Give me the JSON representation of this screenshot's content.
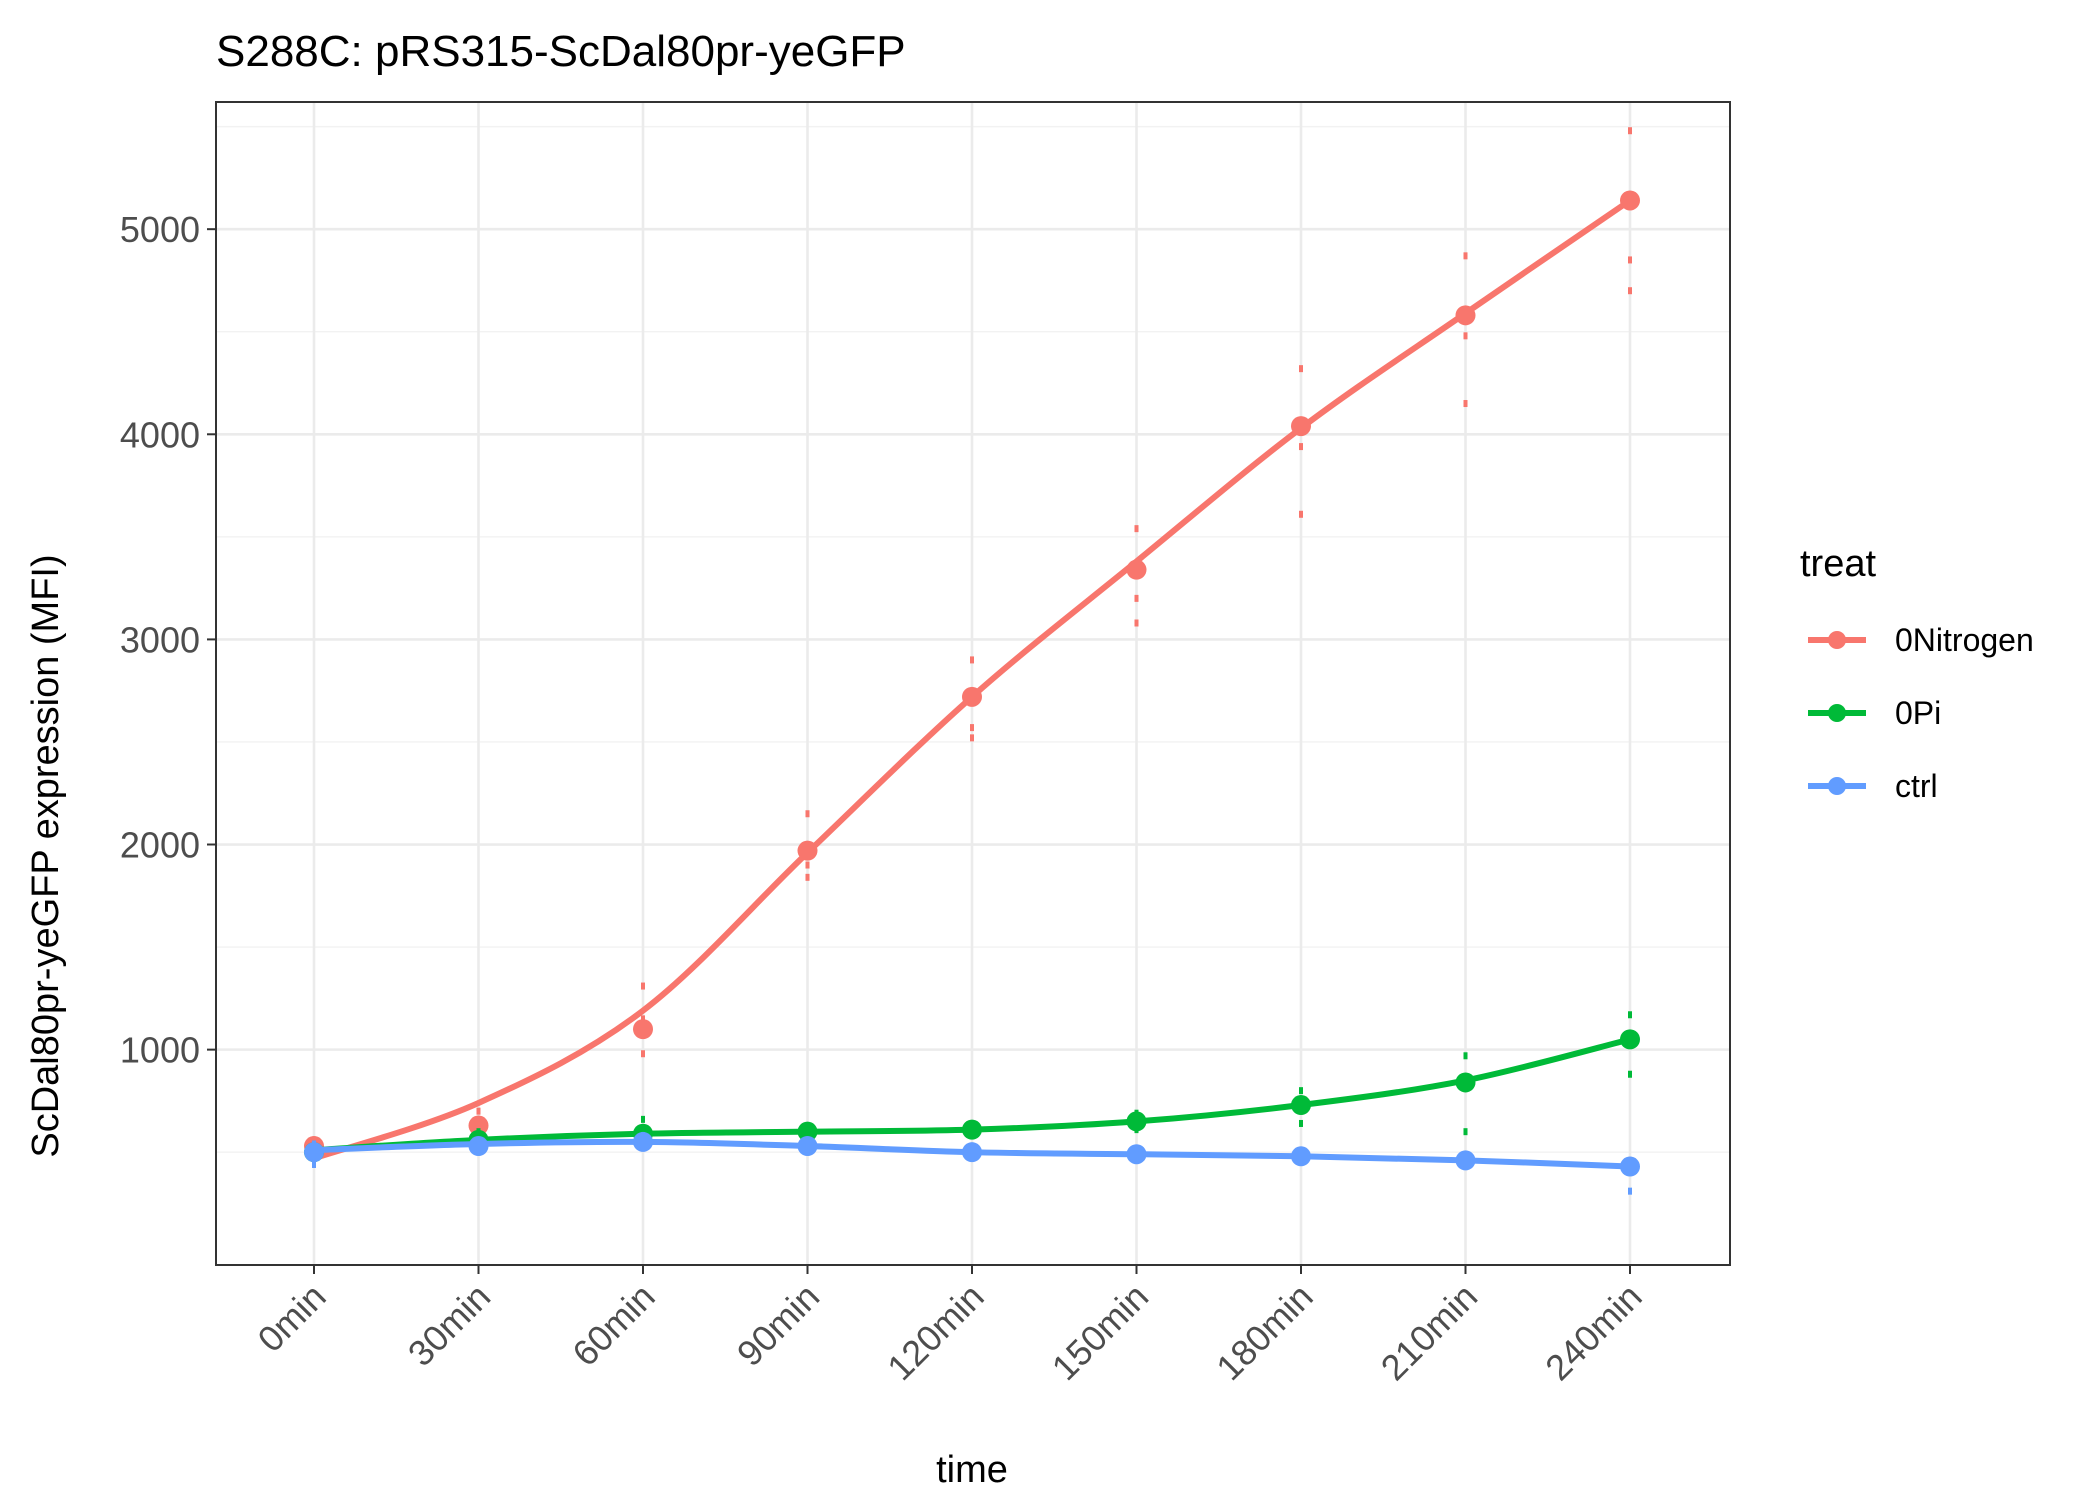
{
  "chart_data": {
    "type": "line",
    "title": "S288C: pRS315-ScDal80pr-yeGFP",
    "xlabel": "time",
    "ylabel": "ScDal80pr-yeGFP expression (MFI)",
    "categories": [
      "0min",
      "30min",
      "60min",
      "90min",
      "120min",
      "150min",
      "180min",
      "210min",
      "240min"
    ],
    "y_ticks": [
      1000,
      2000,
      3000,
      4000,
      5000
    ],
    "y_tick_labels": [
      "1000",
      "2000",
      "3000",
      "4000",
      "5000"
    ],
    "ylim": [
      -50,
      5620
    ],
    "grid": true,
    "legend": {
      "title": "treat",
      "position": "right"
    },
    "series": [
      {
        "name": "0Nitrogen",
        "color": "#F8766D",
        "means": [
          530,
          630,
          1100,
          1970,
          2720,
          3340,
          4040,
          4580,
          5140
        ],
        "smooth": [
          470,
          740,
          1190,
          1960,
          2720,
          3380,
          4030,
          4590,
          5140
        ],
        "replicates": [
          [
            490,
            520,
            560
          ],
          [
            600,
            650,
            700
          ],
          [
            980,
            1150,
            1310
          ],
          [
            1840,
            1900,
            2150
          ],
          [
            2520,
            2570,
            2900
          ],
          [
            3080,
            3200,
            3540
          ],
          [
            3610,
            3940,
            4320
          ],
          [
            4150,
            4480,
            4870
          ],
          [
            4700,
            4850,
            5480
          ]
        ]
      },
      {
        "name": "0Pi",
        "color": "#00BA38",
        "means": [
          500,
          560,
          590,
          600,
          610,
          650,
          730,
          840,
          1050
        ],
        "smooth": [
          510,
          560,
          590,
          600,
          610,
          650,
          730,
          850,
          1050
        ],
        "replicates": [
          [
            470,
            510,
            540
          ],
          [
            520,
            560,
            600
          ],
          [
            560,
            590,
            660
          ],
          [
            570,
            600,
            630
          ],
          [
            580,
            610,
            640
          ],
          [
            610,
            650,
            690
          ],
          [
            640,
            730,
            800
          ],
          [
            600,
            830,
            970
          ],
          [
            880,
            1050,
            1170
          ]
        ]
      },
      {
        "name": "ctrl",
        "color": "#619CFF",
        "means": [
          500,
          530,
          550,
          530,
          500,
          490,
          480,
          460,
          430
        ],
        "smooth": [
          510,
          540,
          550,
          530,
          500,
          490,
          480,
          460,
          430
        ],
        "replicates": [
          [
            440,
            500,
            540
          ],
          [
            500,
            530,
            560
          ],
          [
            520,
            550,
            580
          ],
          [
            500,
            530,
            560
          ],
          [
            470,
            500,
            530
          ],
          [
            460,
            490,
            520
          ],
          [
            450,
            480,
            510
          ],
          [
            430,
            460,
            490
          ],
          [
            310,
            430,
            460
          ]
        ]
      }
    ]
  }
}
